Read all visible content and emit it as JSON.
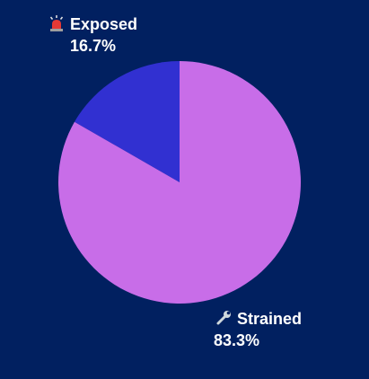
{
  "chart_data": {
    "type": "pie",
    "start_angle_deg": 0,
    "direction": "counterclockwise",
    "slices": [
      {
        "label": "Exposed",
        "value": 16.7,
        "display": "16.7%",
        "color": "#3130D1",
        "icon": "siren-icon"
      },
      {
        "label": "Strained",
        "value": 83.3,
        "display": "83.3%",
        "color": "#C86DE8",
        "icon": "wrench-icon"
      }
    ],
    "background": "#012060"
  }
}
